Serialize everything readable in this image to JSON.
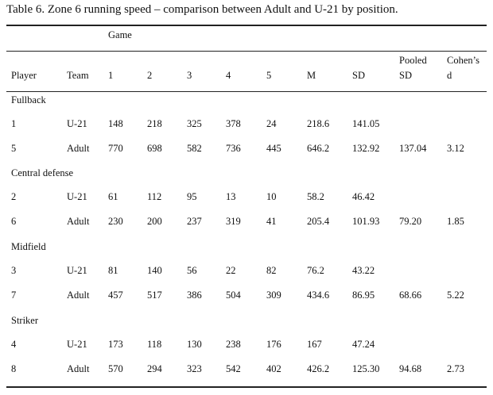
{
  "caption": "Table 6. Zone 6 running speed – comparison between Adult and U-21 by position.",
  "header": {
    "game_span": "Game",
    "columns": [
      "Player",
      "Team",
      "1",
      "2",
      "3",
      "4",
      "5",
      "M",
      "SD",
      "Pooled SD",
      "Cohen’s d"
    ],
    "pooled_line1": "Pooled",
    "pooled_line2": "SD",
    "cohens_line1": "Cohen’s",
    "cohens_line2": "d"
  },
  "groups": [
    {
      "name": "Fullback",
      "rows": [
        [
          "1",
          "U-21",
          "148",
          "218",
          "325",
          "378",
          "24",
          "218.6",
          "141.05",
          "",
          ""
        ],
        [
          "5",
          "Adult",
          "770",
          "698",
          "582",
          "736",
          "445",
          "646.2",
          "132.92",
          "137.04",
          "3.12"
        ]
      ]
    },
    {
      "name": "Central defense",
      "rows": [
        [
          "2",
          "U-21",
          "61",
          "112",
          "95",
          "13",
          "10",
          "58.2",
          "46.42",
          "",
          ""
        ],
        [
          "6",
          "Adult",
          "230",
          "200",
          "237",
          "319",
          "41",
          "205.4",
          "101.93",
          "79.20",
          "1.85"
        ]
      ]
    },
    {
      "name": "Midfield",
      "rows": [
        [
          "3",
          "U-21",
          "81",
          "140",
          "56",
          "22",
          "82",
          "76.2",
          "43.22",
          "",
          ""
        ],
        [
          "7",
          "Adult",
          "457",
          "517",
          "386",
          "504",
          "309",
          "434.6",
          "86.95",
          "68.66",
          "5.22"
        ]
      ]
    },
    {
      "name": "Striker",
      "rows": [
        [
          "4",
          "U-21",
          "173",
          "118",
          "130",
          "238",
          "176",
          "167",
          "47.24",
          "",
          ""
        ],
        [
          "8",
          "Adult",
          "570",
          "294",
          "323",
          "542",
          "402",
          "426.2",
          "125.30",
          "94.68",
          "2.73"
        ]
      ]
    }
  ]
}
